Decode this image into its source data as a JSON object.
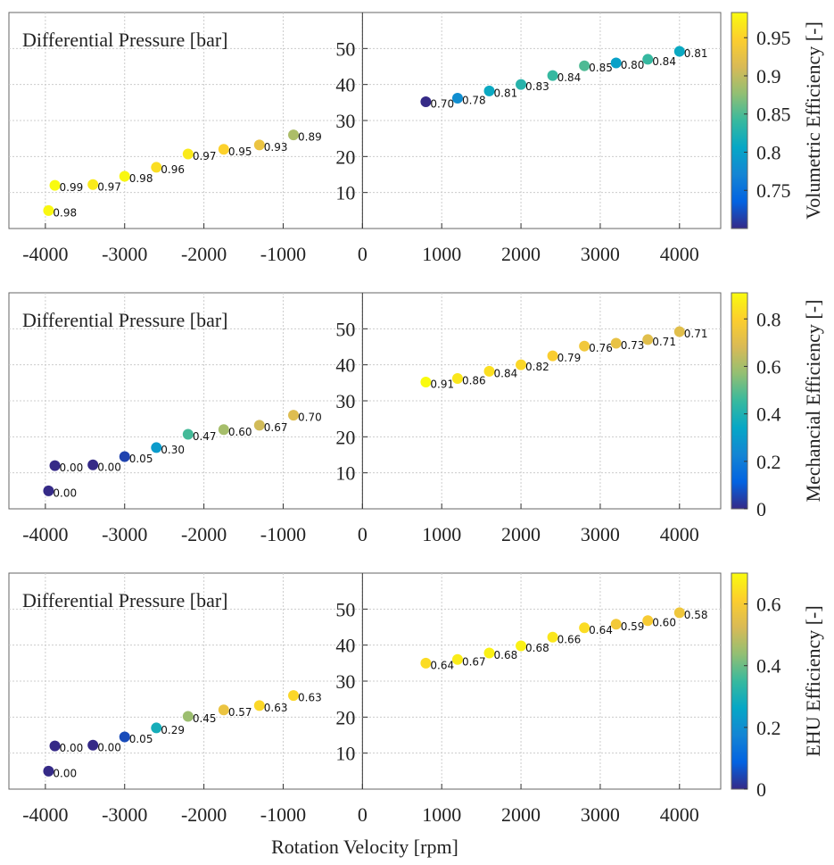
{
  "chart_data": [
    {
      "type": "scatter",
      "y_label": "Differential Pressure [bar]",
      "colormap": "parula",
      "x": [
        -3960,
        -3880,
        -3400,
        -3000,
        -2600,
        -2200,
        -1750,
        -1300,
        -870,
        800,
        1200,
        1600,
        2000,
        2400,
        2800,
        3200,
        3600,
        4000
      ],
      "y": [
        5,
        12,
        12.2,
        14.5,
        17,
        20.7,
        22,
        23.2,
        26,
        35.2,
        36.2,
        38.2,
        40,
        42.5,
        45.2,
        46,
        47,
        49.2
      ],
      "values": [
        0.98,
        0.99,
        0.97,
        0.98,
        0.96,
        0.97,
        0.95,
        0.93,
        0.89,
        0.7,
        0.78,
        0.81,
        0.83,
        0.84,
        0.85,
        0.8,
        0.84,
        0.81
      ],
      "value_labels": [
        "0.98",
        "0.99",
        "0.97",
        "0.98",
        "0.96",
        "0.97",
        "0.95",
        "0.93",
        "0.89",
        "0.70",
        "0.78",
        "0.81",
        "0.83",
        "0.84",
        "0.85",
        "0.80",
        "0.84",
        "0.81"
      ],
      "xlim": [
        -4460,
        4520
      ],
      "xticks": [
        -4000,
        -3000,
        -2000,
        -1000,
        0,
        1000,
        2000,
        3000,
        4000
      ],
      "ylim": [
        0,
        60
      ],
      "yticks": [
        10,
        20,
        30,
        40,
        50
      ],
      "grid": true,
      "colorbar": {
        "label": "Volumetric Efficiency [-]",
        "lim": [
          0.7,
          0.983
        ],
        "ticks": [
          0.75,
          0.8,
          0.85,
          0.9,
          0.95
        ]
      }
    },
    {
      "type": "scatter",
      "y_label": "Differential Pressure [bar]",
      "colormap": "parula",
      "x": [
        -3960,
        -3880,
        -3400,
        -3000,
        -2600,
        -2200,
        -1750,
        -1300,
        -870,
        800,
        1200,
        1600,
        2000,
        2400,
        2800,
        3200,
        3600,
        4000
      ],
      "y": [
        5,
        12,
        12.2,
        14.5,
        17,
        20.7,
        22,
        23.2,
        26,
        35.2,
        36.2,
        38.2,
        40,
        42.5,
        45.2,
        46,
        47,
        49.2
      ],
      "values": [
        0,
        0,
        0,
        0.05,
        0.3,
        0.47,
        0.6,
        0.67,
        0.7,
        0.91,
        0.86,
        0.84,
        0.82,
        0.79,
        0.76,
        0.73,
        0.71,
        0.71
      ],
      "value_labels": [
        "0.00",
        "0.00",
        "0.00",
        "0.05",
        "0.30",
        "0.47",
        "0.60",
        "0.67",
        "0.70",
        "0.91",
        "0.86",
        "0.84",
        "0.82",
        "0.79",
        "0.76",
        "0.73",
        "0.71",
        "0.71"
      ],
      "xlim": [
        -4460,
        4520
      ],
      "xticks": [
        -4000,
        -3000,
        -2000,
        -1000,
        0,
        1000,
        2000,
        3000,
        4000
      ],
      "ylim": [
        0,
        60
      ],
      "yticks": [
        10,
        20,
        30,
        40,
        50
      ],
      "grid": true,
      "colorbar": {
        "label": "Mechancial Efficiency [-]",
        "lim": [
          0,
          0.91
        ],
        "ticks": [
          0,
          0.2,
          0.4,
          0.6,
          0.8
        ]
      }
    },
    {
      "type": "scatter",
      "y_label": "Differential Pressure [bar]",
      "x_label": "Rotation Velocity [rpm]",
      "colormap": "parula",
      "x": [
        -3960,
        -3880,
        -3400,
        -3000,
        -2600,
        -2200,
        -1750,
        -1300,
        -870,
        800,
        1200,
        1600,
        2000,
        2400,
        2800,
        3200,
        3600,
        4000
      ],
      "y": [
        5,
        12,
        12.2,
        14.5,
        17,
        20.2,
        22,
        23.2,
        26,
        35,
        36,
        37.8,
        39.8,
        42.2,
        44.8,
        45.8,
        46.8,
        49
      ],
      "values": [
        0,
        0,
        0,
        0.05,
        0.29,
        0.45,
        0.57,
        0.63,
        0.63,
        0.64,
        0.67,
        0.68,
        0.68,
        0.66,
        0.64,
        0.59,
        0.6,
        0.58
      ],
      "value_labels": [
        "0.00",
        "0.00",
        "0.00",
        "0.05",
        "0.29",
        "0.45",
        "0.57",
        "0.63",
        "0.63",
        "0.64",
        "0.67",
        "0.68",
        "0.68",
        "0.66",
        "0.64",
        "0.59",
        "0.60",
        "0.58"
      ],
      "xlim": [
        -4460,
        4520
      ],
      "xticks": [
        -4000,
        -3000,
        -2000,
        -1000,
        0,
        1000,
        2000,
        3000,
        4000
      ],
      "ylim": [
        0,
        60
      ],
      "yticks": [
        10,
        20,
        30,
        40,
        50
      ],
      "grid": true,
      "colorbar": {
        "label": "EHU Efficiency [-]",
        "lim": [
          0,
          0.7
        ],
        "ticks": [
          0,
          0.2,
          0.4,
          0.6
        ]
      }
    }
  ]
}
